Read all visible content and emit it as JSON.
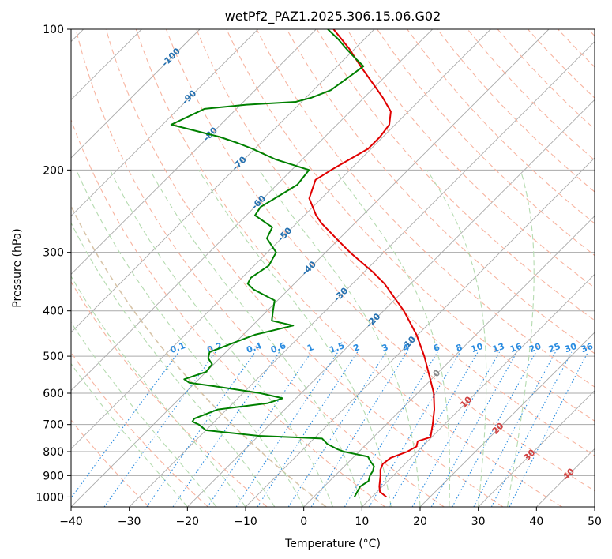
{
  "chart_data": {
    "type": "line",
    "subtype": "skew-T log-P diagram",
    "title": "wetPf2_PAZ1.2025.306.15.06.G02",
    "xlabel": "Temperature (°C)",
    "ylabel": "Pressure (hPa)",
    "xlim": [
      -40,
      50
    ],
    "ylim": [
      1050,
      100
    ],
    "x_ticks": [
      -40,
      -30,
      -20,
      -10,
      0,
      10,
      20,
      30,
      40,
      50
    ],
    "y_ticks": [
      100,
      200,
      300,
      400,
      500,
      600,
      700,
      800,
      900,
      1000
    ],
    "grid": true,
    "skew": 1.0,
    "series": [
      {
        "name": "Temperature",
        "color": "#e00000",
        "points": [
          [
            1000,
            12.5
          ],
          [
            975,
            10.5
          ],
          [
            950,
            9.5
          ],
          [
            900,
            7.8
          ],
          [
            875,
            6.8
          ],
          [
            850,
            6.2
          ],
          [
            825,
            6.5
          ],
          [
            800,
            8.3
          ],
          [
            780,
            9.0
          ],
          [
            760,
            8.3
          ],
          [
            745,
            9.8
          ],
          [
            700,
            8.0
          ],
          [
            650,
            5.7
          ],
          [
            600,
            2.8
          ],
          [
            550,
            -1.0
          ],
          [
            500,
            -5.2
          ],
          [
            450,
            -10.2
          ],
          [
            400,
            -16.5
          ],
          [
            350,
            -24.5
          ],
          [
            330,
            -28.6
          ],
          [
            300,
            -35.8
          ],
          [
            280,
            -40.6
          ],
          [
            260,
            -45.7
          ],
          [
            250,
            -48.0
          ],
          [
            230,
            -52.1
          ],
          [
            210,
            -54.2
          ],
          [
            200,
            -53.2
          ],
          [
            180,
            -50.5
          ],
          [
            170,
            -50.5
          ],
          [
            160,
            -51.0
          ],
          [
            150,
            -53.0
          ],
          [
            140,
            -56.8
          ],
          [
            130,
            -61.2
          ],
          [
            120,
            -66.0
          ],
          [
            110,
            -71.0
          ],
          [
            100,
            -77.0
          ]
        ]
      },
      {
        "name": "Dewpoint",
        "color": "#008000",
        "points": [
          [
            1000,
            7.0
          ],
          [
            950,
            6.2
          ],
          [
            925,
            6.7
          ],
          [
            900,
            6.0
          ],
          [
            880,
            5.7
          ],
          [
            860,
            5.1
          ],
          [
            840,
            3.7
          ],
          [
            820,
            2.4
          ],
          [
            800,
            -2.6
          ],
          [
            790,
            -4.2
          ],
          [
            770,
            -6.8
          ],
          [
            750,
            -8.6
          ],
          [
            740,
            -20.0
          ],
          [
            720,
            -30.0
          ],
          [
            700,
            -32.2
          ],
          [
            690,
            -33.8
          ],
          [
            680,
            -34.0
          ],
          [
            650,
            -31.5
          ],
          [
            630,
            -24.0
          ],
          [
            615,
            -22.3
          ],
          [
            600,
            -27.0
          ],
          [
            580,
            -36.0
          ],
          [
            570,
            -41.0
          ],
          [
            560,
            -42.5
          ],
          [
            540,
            -40.0
          ],
          [
            520,
            -40.3
          ],
          [
            505,
            -42.0
          ],
          [
            490,
            -42.8
          ],
          [
            470,
            -40.5
          ],
          [
            450,
            -38.0
          ],
          [
            430,
            -33.0
          ],
          [
            420,
            -37.5
          ],
          [
            400,
            -39.0
          ],
          [
            380,
            -40.5
          ],
          [
            360,
            -46.0
          ],
          [
            350,
            -48.0
          ],
          [
            340,
            -48.5
          ],
          [
            320,
            -47.5
          ],
          [
            300,
            -48.5
          ],
          [
            280,
            -52.5
          ],
          [
            265,
            -53.5
          ],
          [
            250,
            -58.5
          ],
          [
            240,
            -59.0
          ],
          [
            225,
            -57.5
          ],
          [
            215,
            -56.5
          ],
          [
            200,
            -57.0
          ],
          [
            190,
            -64.5
          ],
          [
            180,
            -70.5
          ],
          [
            175,
            -74.0
          ],
          [
            170,
            -78.0
          ],
          [
            160,
            -88.5
          ],
          [
            150,
            -86.0
          ],
          [
            148,
            -85.5
          ],
          [
            145,
            -79.0
          ],
          [
            143,
            -71.0
          ],
          [
            140,
            -69.0
          ],
          [
            135,
            -67.0
          ],
          [
            125,
            -66.0
          ],
          [
            120,
            -65.5
          ],
          [
            115,
            -68.5
          ],
          [
            110,
            -71.5
          ],
          [
            105,
            -74.5
          ],
          [
            100,
            -78.0
          ]
        ]
      }
    ],
    "background_lines": {
      "dry_adiabats_theta_c": [
        -30,
        -20,
        -10,
        0,
        10,
        20,
        30,
        40,
        50,
        60,
        70,
        80,
        90,
        100,
        110,
        120,
        130,
        140,
        150,
        160,
        170,
        180,
        190,
        200
      ],
      "moist_adiabats_c": [
        -20,
        -15,
        -10,
        -5,
        0,
        5,
        10,
        15,
        20,
        25,
        30,
        35
      ],
      "mixing_ratios_gkg": [
        0.1,
        0.2,
        0.4,
        0.6,
        1,
        1.5,
        2,
        3,
        4,
        6,
        8,
        10,
        13,
        16,
        20,
        25,
        30,
        36
      ],
      "mixing_ratio_labels": [
        "0.1",
        "0.2",
        "0.4",
        "0.6",
        "1",
        "1.5",
        "2",
        "3",
        "4",
        "6",
        "8",
        "10",
        "13",
        "16",
        "20",
        "25",
        "30",
        "36"
      ],
      "isotherm_labels": [
        {
          "t": -100,
          "p": 115,
          "text": "-100"
        },
        {
          "t": -90,
          "p": 140,
          "text": "-90"
        },
        {
          "t": -80,
          "p": 168,
          "text": "-80"
        },
        {
          "t": -70,
          "p": 194,
          "text": "-70"
        },
        {
          "t": -60,
          "p": 235,
          "text": "-60"
        },
        {
          "t": -50,
          "p": 275,
          "text": "-50"
        },
        {
          "t": -40,
          "p": 325,
          "text": "-40"
        },
        {
          "t": -30,
          "p": 370,
          "text": "-30"
        },
        {
          "t": -20,
          "p": 420,
          "text": "-20"
        },
        {
          "t": -10,
          "p": 470,
          "text": "-10"
        },
        {
          "t": 0,
          "p": 545,
          "text": "0"
        },
        {
          "t": 10,
          "p": 628,
          "text": "10"
        },
        {
          "t": 20,
          "p": 715,
          "text": "20"
        },
        {
          "t": 30,
          "p": 815,
          "text": "30"
        },
        {
          "t": 40,
          "p": 895,
          "text": "40"
        }
      ]
    },
    "colors": {
      "temperature": "#e00000",
      "dewpoint": "#008000",
      "isotherm": "#aaaaaa",
      "dry_adiabat": "#f7b4a0",
      "moist_adiabat": "#b5dbb0",
      "mixing_ratio": "#2b8ce0",
      "isotherm_label_cold": "#2470b0",
      "isotherm_label_zero": "#888888",
      "isotherm_label_warm": "#d04040",
      "mixing_ratio_label": "#2b8ce0"
    }
  }
}
